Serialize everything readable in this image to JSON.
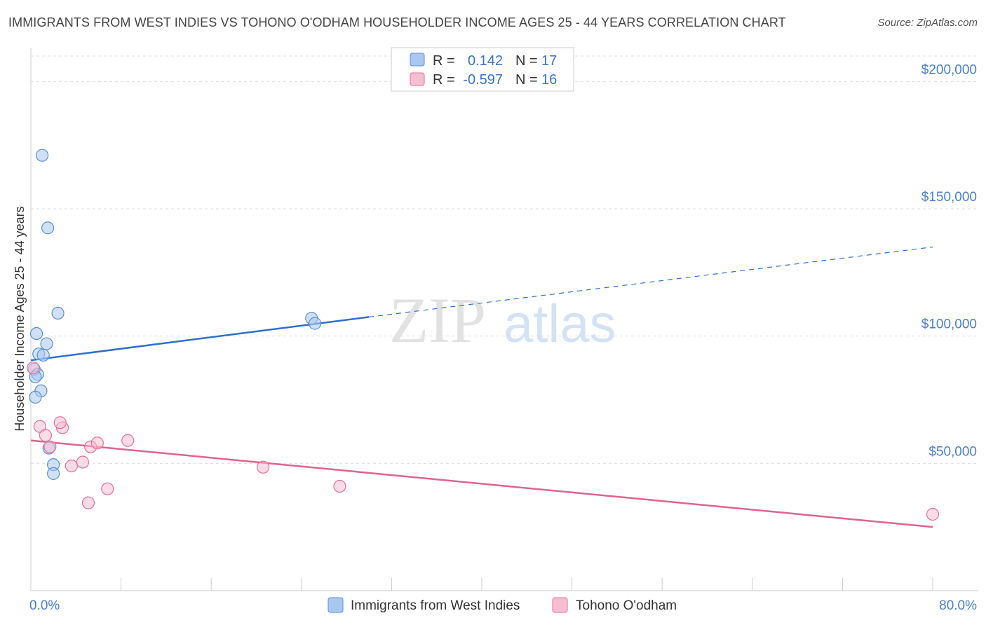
{
  "title": "IMMIGRANTS FROM WEST INDIES VS TOHONO O'ODHAM HOUSEHOLDER INCOME AGES 25 - 44 YEARS CORRELATION CHART",
  "source": "Source: ZipAtlas.com",
  "watermark": {
    "zip": "ZIP",
    "atlas": "atlas"
  },
  "colors": {
    "blue": "#5b8fd6",
    "blue_fill": "#a9c8f0",
    "blue_line": "#2f6fcc",
    "pink": "#e56f98",
    "pink_fill": "#f5bfd1",
    "pink_line": "#e0638e",
    "grid": "#dddddd",
    "tick_text": "#4a7fcf"
  },
  "legend": {
    "rows": [
      {
        "r_label": "R =",
        "r_value": "0.142",
        "n_label": "N =",
        "n_value": "17"
      },
      {
        "r_label": "R =",
        "r_value": "-0.597",
        "n_label": "N =",
        "n_value": "16"
      }
    ]
  },
  "chart_data": {
    "type": "scatter",
    "xlabel": "",
    "ylabel": "Householder Income Ages 25 - 44 years",
    "xlim": [
      0,
      80
    ],
    "ylim": [
      0,
      210000
    ],
    "x_tick_labels": [
      {
        "value": 0,
        "label": "0.0%"
      },
      {
        "value": 80,
        "label": "80.0%"
      }
    ],
    "y_ticks": [
      {
        "value": 50000,
        "label": "$50,000"
      },
      {
        "value": 100000,
        "label": "$100,000"
      },
      {
        "value": 150000,
        "label": "$150,000"
      },
      {
        "value": 200000,
        "label": "$200,000"
      }
    ],
    "series": [
      {
        "name": "Immigrants from West Indies",
        "color_key": "blue",
        "points": [
          [
            1.0,
            171000
          ],
          [
            1.5,
            142500
          ],
          [
            2.4,
            109000
          ],
          [
            0.5,
            101000
          ],
          [
            1.4,
            97000
          ],
          [
            0.7,
            93000
          ],
          [
            1.1,
            92500
          ],
          [
            0.3,
            87000
          ],
          [
            0.6,
            85000
          ],
          [
            0.4,
            84000
          ],
          [
            0.9,
            78500
          ],
          [
            0.4,
            76000
          ],
          [
            1.6,
            56000
          ],
          [
            2.0,
            49500
          ],
          [
            2.0,
            46000
          ],
          [
            24.9,
            107000
          ],
          [
            25.2,
            105000
          ]
        ],
        "trend": {
          "x0": 0,
          "y0": 90500,
          "x1": 30,
          "y1": 107500,
          "dash_to_x": 80,
          "dash_to_y": 135000
        }
      },
      {
        "name": "Tohono O'odham",
        "color_key": "pink",
        "points": [
          [
            0.2,
            87500
          ],
          [
            0.8,
            64500
          ],
          [
            1.3,
            61000
          ],
          [
            1.7,
            56500
          ],
          [
            2.8,
            64000
          ],
          [
            2.6,
            66000
          ],
          [
            5.3,
            56500
          ],
          [
            5.9,
            58000
          ],
          [
            8.6,
            59000
          ],
          [
            3.6,
            49000
          ],
          [
            4.6,
            50500
          ],
          [
            6.8,
            40000
          ],
          [
            5.1,
            34500
          ],
          [
            20.6,
            48500
          ],
          [
            27.4,
            41000
          ],
          [
            80.0,
            30000
          ]
        ],
        "trend": {
          "x0": 0,
          "y0": 59000,
          "x1": 80,
          "y1": 25000
        }
      }
    ]
  }
}
